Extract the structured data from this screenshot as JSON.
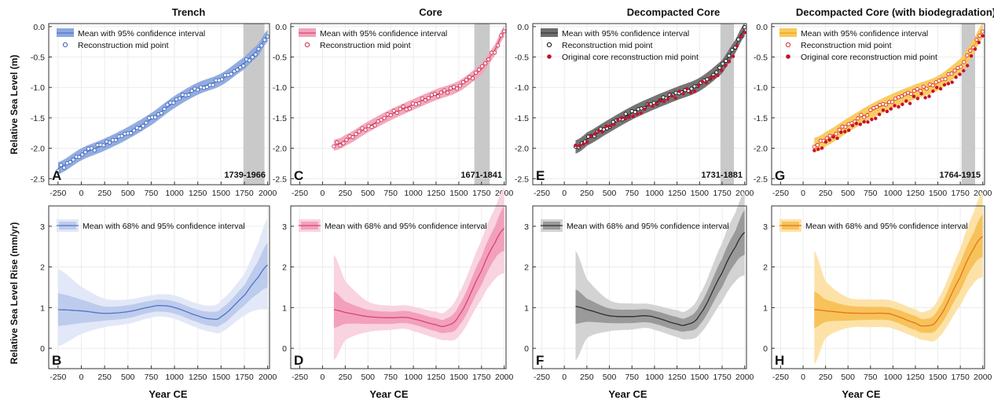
{
  "figure": {
    "ylabel_top": "Relative Sea Level (m)",
    "ylabel_bottom": "Relative Sea Level Rise (mm/yr)",
    "xlabel": "Year CE"
  },
  "legend_text": {
    "mean95": "Mean with 95% confidence interval",
    "mid": "Reconstruction mid point",
    "orig": "Original core reconstruction mid point",
    "mean6895": "Mean with 68% and 95% confidence interval"
  },
  "chart_data": [
    {
      "type": "line",
      "panel": "A",
      "title": "Trench",
      "color": "#4f74c4",
      "band": "#8ca8df",
      "xlim": [
        -350,
        2020
      ],
      "ylim": [
        -2.6,
        0.05
      ],
      "xticks": [
        -250,
        0,
        250,
        500,
        750,
        1000,
        1250,
        1500,
        1750,
        2000
      ],
      "yticks": [
        0.0,
        -0.5,
        -1.0,
        -1.5,
        -2.0,
        -2.5
      ],
      "shaded_interval": [
        1739,
        1966
      ],
      "shaded_label": "1739-1966",
      "x": [
        -250,
        0,
        250,
        500,
        750,
        1000,
        1250,
        1500,
        1750,
        1900,
        2000
      ],
      "mean": [
        -2.33,
        -2.1,
        -1.94,
        -1.75,
        -1.52,
        -1.24,
        -1.02,
        -0.87,
        -0.6,
        -0.38,
        -0.15
      ],
      "ci95_halfwidth": 0.1,
      "points": "reconstruction mid points along the mean"
    },
    {
      "type": "line",
      "panel": "C",
      "title": "Core",
      "color": "#d9466b",
      "band": "#f2a3bb",
      "xlim": [
        -350,
        2020
      ],
      "ylim": [
        -2.6,
        0.05
      ],
      "xticks": [
        -250,
        0,
        250,
        500,
        750,
        1000,
        1250,
        1500,
        1750,
        2000
      ],
      "yticks": [
        0.0,
        -0.5,
        -1.0,
        -1.5,
        -2.0,
        -2.5
      ],
      "shaded_interval": [
        1671,
        1841
      ],
      "shaded_label": "1671-1841",
      "x": [
        125,
        250,
        500,
        750,
        1000,
        1250,
        1500,
        1750,
        1900,
        2000
      ],
      "mean": [
        -1.95,
        -1.87,
        -1.65,
        -1.45,
        -1.28,
        -1.12,
        -0.98,
        -0.7,
        -0.38,
        -0.08
      ],
      "ci95_halfwidth": 0.09,
      "points": "reconstruction mid points along the mean"
    },
    {
      "type": "line",
      "panel": "E",
      "title": "Decompacted Core",
      "color": "#3a3a3a",
      "band": "#6e6e6e",
      "xlim": [
        -350,
        2020
      ],
      "ylim": [
        -2.6,
        0.05
      ],
      "xticks": [
        -250,
        0,
        250,
        500,
        750,
        1000,
        1250,
        1500,
        1750,
        2000
      ],
      "yticks": [
        0.0,
        -0.5,
        -1.0,
        -1.5,
        -2.0,
        -2.5
      ],
      "shaded_interval": [
        1731,
        1881
      ],
      "shaded_label": "1731-1881",
      "x": [
        125,
        250,
        500,
        750,
        1000,
        1250,
        1500,
        1750,
        1900,
        2000
      ],
      "mean": [
        -1.98,
        -1.85,
        -1.63,
        -1.42,
        -1.25,
        -1.1,
        -0.95,
        -0.66,
        -0.32,
        -0.05
      ],
      "ci95_halfwidth": 0.11,
      "points": "reconstruction mid points along the mean"
    },
    {
      "type": "line",
      "panel": "G",
      "title": "Decompacted Core (with biodegradation)",
      "color": "#f0a316",
      "band": "#f8c95a",
      "xlim": [
        -350,
        2020
      ],
      "ylim": [
        -2.6,
        0.05
      ],
      "xticks": [
        -250,
        0,
        250,
        500,
        750,
        1000,
        1250,
        1500,
        1750,
        2000
      ],
      "yticks": [
        0.0,
        -0.5,
        -1.0,
        -1.5,
        -2.0,
        -2.5
      ],
      "shaded_interval": [
        1764,
        1915
      ],
      "shaded_label": "1764-1915",
      "x": [
        125,
        250,
        500,
        750,
        1000,
        1250,
        1500,
        1750,
        1900,
        2000
      ],
      "mean": [
        -1.95,
        -1.85,
        -1.62,
        -1.4,
        -1.22,
        -1.07,
        -0.93,
        -0.65,
        -0.33,
        -0.07
      ],
      "ci95_halfwidth": 0.12,
      "original_points": "red original core reconstruction mid points slightly below the mean",
      "points": "reconstruction mid points along the mean"
    },
    {
      "type": "line",
      "panel": "B",
      "color": "#4f74c4",
      "band95": "#e2e8f7",
      "band68": "#bdcbec",
      "xlim": [
        -350,
        2020
      ],
      "ylim": [
        -0.5,
        3.5
      ],
      "xticks": [
        -250,
        0,
        250,
        500,
        750,
        1000,
        1250,
        1500,
        1750,
        2000
      ],
      "yticks": [
        0,
        1,
        2,
        3
      ],
      "x": [
        -250,
        0,
        250,
        500,
        750,
        850,
        1000,
        1250,
        1400,
        1500,
        1750,
        1900,
        2000
      ],
      "mean": [
        0.95,
        0.92,
        0.86,
        0.9,
        1.02,
        1.05,
        1.0,
        0.8,
        0.72,
        0.78,
        1.3,
        1.75,
        2.05
      ],
      "ci68": [
        [
          0.55,
          1.35
        ],
        [
          0.62,
          1.2
        ],
        [
          0.68,
          1.03
        ],
        [
          0.74,
          1.06
        ],
        [
          0.88,
          1.17
        ],
        [
          0.9,
          1.2
        ],
        [
          0.85,
          1.15
        ],
        [
          0.64,
          0.95
        ],
        [
          0.55,
          0.9
        ],
        [
          0.58,
          0.98
        ],
        [
          1.05,
          1.55
        ],
        [
          1.35,
          2.15
        ],
        [
          1.5,
          2.6
        ]
      ],
      "ci95": [
        [
          0.05,
          1.95
        ],
        [
          0.35,
          1.52
        ],
        [
          0.52,
          1.22
        ],
        [
          0.6,
          1.2
        ],
        [
          0.75,
          1.3
        ],
        [
          0.78,
          1.33
        ],
        [
          0.72,
          1.3
        ],
        [
          0.5,
          1.1
        ],
        [
          0.4,
          1.05
        ],
        [
          0.4,
          1.18
        ],
        [
          0.8,
          1.82
        ],
        [
          0.95,
          2.6
        ],
        [
          0.95,
          3.2
        ]
      ]
    },
    {
      "type": "line",
      "panel": "D",
      "color": "#d9466b",
      "band95": "#f9d3e0",
      "band68": "#f2a0bd",
      "xlim": [
        -350,
        2020
      ],
      "ylim": [
        -0.5,
        3.5
      ],
      "xticks": [
        -250,
        0,
        250,
        500,
        750,
        1000,
        1250,
        1500,
        1750,
        2000
      ],
      "yticks": [
        0,
        1,
        2,
        3
      ],
      "x": [
        125,
        250,
        500,
        750,
        900,
        1000,
        1250,
        1350,
        1500,
        1750,
        1900,
        2000
      ],
      "mean": [
        0.95,
        0.88,
        0.78,
        0.75,
        0.76,
        0.72,
        0.58,
        0.55,
        0.8,
        1.9,
        2.6,
        2.95
      ],
      "ci68": [
        [
          0.5,
          1.4
        ],
        [
          0.6,
          1.15
        ],
        [
          0.6,
          0.95
        ],
        [
          0.6,
          0.9
        ],
        [
          0.62,
          0.92
        ],
        [
          0.58,
          0.88
        ],
        [
          0.42,
          0.74
        ],
        [
          0.38,
          0.72
        ],
        [
          0.55,
          1.05
        ],
        [
          1.55,
          2.25
        ],
        [
          2.2,
          3.0
        ],
        [
          2.4,
          3.5
        ]
      ],
      "ci95": [
        [
          -0.3,
          2.3
        ],
        [
          0.2,
          1.65
        ],
        [
          0.4,
          1.15
        ],
        [
          0.45,
          1.05
        ],
        [
          0.48,
          1.06
        ],
        [
          0.42,
          1.02
        ],
        [
          0.25,
          0.9
        ],
        [
          0.2,
          0.9
        ],
        [
          0.3,
          1.35
        ],
        [
          1.2,
          2.65
        ],
        [
          1.7,
          3.45
        ],
        [
          1.85,
          3.95
        ]
      ]
    },
    {
      "type": "line",
      "panel": "F",
      "color": "#2e2e2e",
      "band95": "#d3d3d3",
      "band68": "#9a9a9a",
      "xlim": [
        -350,
        2020
      ],
      "ylim": [
        -0.5,
        3.5
      ],
      "xticks": [
        -250,
        0,
        250,
        500,
        750,
        1000,
        1250,
        1500,
        1750,
        2000
      ],
      "yticks": [
        0,
        1,
        2,
        3
      ],
      "x": [
        125,
        250,
        500,
        750,
        900,
        1000,
        1250,
        1350,
        1500,
        1750,
        1900,
        2000
      ],
      "mean": [
        1.03,
        0.95,
        0.8,
        0.78,
        0.8,
        0.76,
        0.6,
        0.58,
        0.82,
        1.85,
        2.5,
        2.85
      ],
      "ci68": [
        [
          0.6,
          1.45
        ],
        [
          0.65,
          1.22
        ],
        [
          0.62,
          0.98
        ],
        [
          0.62,
          0.95
        ],
        [
          0.64,
          0.96
        ],
        [
          0.6,
          0.92
        ],
        [
          0.44,
          0.77
        ],
        [
          0.42,
          0.75
        ],
        [
          0.58,
          1.06
        ],
        [
          1.5,
          2.2
        ],
        [
          2.1,
          2.9
        ],
        [
          2.3,
          3.4
        ]
      ],
      "ci95": [
        [
          -0.3,
          2.4
        ],
        [
          0.25,
          1.7
        ],
        [
          0.42,
          1.18
        ],
        [
          0.46,
          1.1
        ],
        [
          0.5,
          1.1
        ],
        [
          0.45,
          1.06
        ],
        [
          0.28,
          0.94
        ],
        [
          0.22,
          0.92
        ],
        [
          0.35,
          1.32
        ],
        [
          1.15,
          2.58
        ],
        [
          1.65,
          3.35
        ],
        [
          1.8,
          3.85
        ]
      ]
    },
    {
      "type": "line",
      "panel": "H",
      "color": "#e2741c",
      "band95": "#fde2a8",
      "band68": "#f8c25a",
      "xlim": [
        -350,
        2020
      ],
      "ylim": [
        -0.5,
        3.5
      ],
      "xticks": [
        -250,
        0,
        250,
        500,
        750,
        1000,
        1250,
        1500,
        1750,
        2000
      ],
      "yticks": [
        0,
        1,
        2,
        3
      ],
      "x": [
        125,
        250,
        500,
        750,
        900,
        1000,
        1250,
        1350,
        1500,
        1750,
        1900,
        2000
      ],
      "mean": [
        0.95,
        0.92,
        0.87,
        0.86,
        0.86,
        0.82,
        0.62,
        0.55,
        0.72,
        1.75,
        2.45,
        2.75
      ],
      "ci68": [
        [
          0.5,
          1.4
        ],
        [
          0.65,
          1.2
        ],
        [
          0.68,
          1.05
        ],
        [
          0.7,
          1.02
        ],
        [
          0.7,
          1.02
        ],
        [
          0.66,
          0.98
        ],
        [
          0.45,
          0.8
        ],
        [
          0.38,
          0.72
        ],
        [
          0.5,
          0.95
        ],
        [
          1.4,
          2.1
        ],
        [
          2.05,
          2.85
        ],
        [
          2.25,
          3.3
        ]
      ],
      "ci95": [
        [
          -0.4,
          2.4
        ],
        [
          0.25,
          1.65
        ],
        [
          0.5,
          1.25
        ],
        [
          0.52,
          1.2
        ],
        [
          0.52,
          1.2
        ],
        [
          0.48,
          1.16
        ],
        [
          0.28,
          0.96
        ],
        [
          0.2,
          0.9
        ],
        [
          0.25,
          1.2
        ],
        [
          1.05,
          2.45
        ],
        [
          1.6,
          3.35
        ],
        [
          1.75,
          3.85
        ]
      ]
    }
  ]
}
